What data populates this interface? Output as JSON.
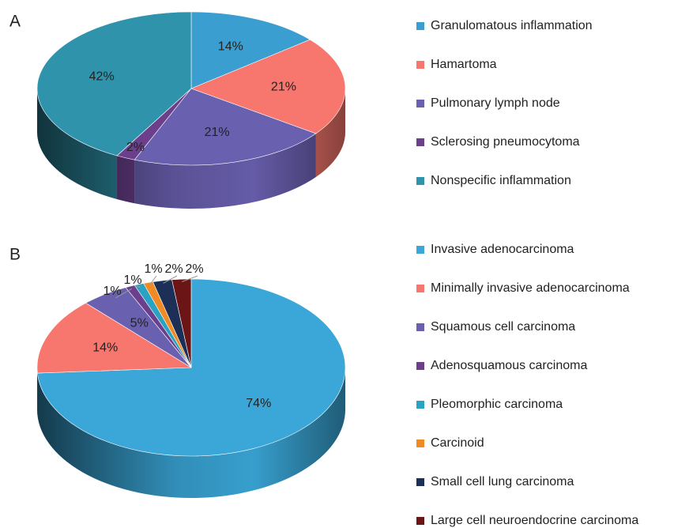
{
  "chart_data": [
    {
      "type": "pie",
      "title": "A",
      "categories": [
        "Granulomatous inflammation",
        "Hamartoma",
        "Pulmonary lymph node",
        "Sclerosing pneumocytoma",
        "Nonspecific inflammation"
      ],
      "values": [
        14,
        21,
        21,
        2,
        42
      ],
      "value_labels": [
        "14%",
        "21%",
        "21%",
        "2%",
        "42%"
      ],
      "colors": [
        "#3a9fd0",
        "#f7766d",
        "#6a60b0",
        "#6b3f8c",
        "#2f93ab"
      ]
    },
    {
      "type": "pie",
      "title": "B",
      "categories": [
        "Invasive adenocarcinoma",
        "Minimally invasive adenocarcinoma",
        "Squamous cell carcinoma",
        "Adenosquamous carcinoma",
        "Pleomorphic carcinoma",
        "Carcinoid",
        "Small cell lung carcinoma",
        "Large cell neuroendocrine carcinoma"
      ],
      "values": [
        74,
        14,
        5,
        1,
        1,
        1,
        2,
        2
      ],
      "value_labels": [
        "74%",
        "14%",
        "5%",
        "1%",
        "1%",
        "1%",
        "2%",
        "2%"
      ],
      "colors": [
        "#3aa7d8",
        "#f7766d",
        "#6a60b0",
        "#6b3f8c",
        "#2aa2c2",
        "#f08a24",
        "#1c2f57",
        "#6b1517"
      ]
    }
  ]
}
